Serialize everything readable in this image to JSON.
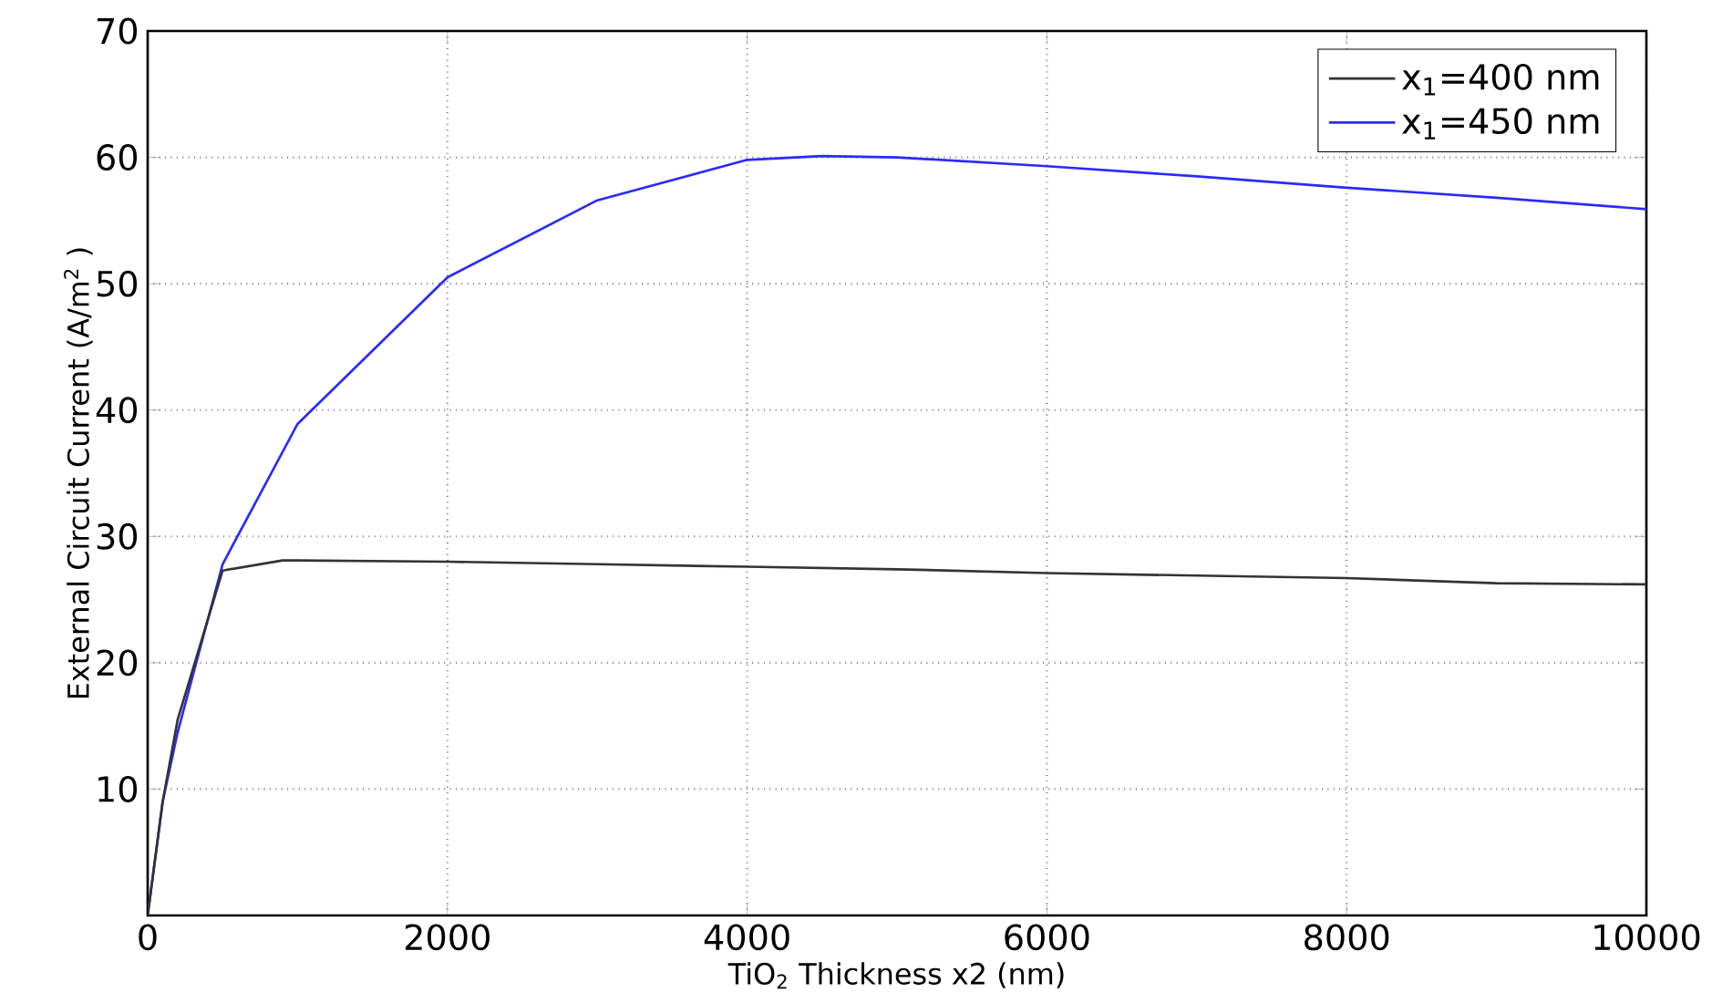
{
  "chart_data": {
    "type": "line",
    "xlabel": "TiO$_{2}$ Thickness x2 (nm)",
    "ylabel": "External Circuit Current (A/m$^{2}$ )",
    "xlim": [
      0,
      10000
    ],
    "ylim": [
      0,
      70
    ],
    "xticks": [
      0,
      2000,
      4000,
      6000,
      8000,
      10000
    ],
    "yticks": [
      10,
      20,
      30,
      40,
      50,
      60,
      70
    ],
    "grid": true,
    "legend": "top right",
    "line_style": "solid",
    "series": [
      {
        "name": "x$_{1}$=400 nm",
        "color": "#333333",
        "x": [
          0,
          100,
          200,
          500,
          900,
          1000,
          2000,
          3000,
          4000,
          5000,
          6000,
          7000,
          8000,
          9000,
          10000
        ],
        "values": [
          0,
          9,
          15.5,
          27.3,
          28.1,
          28.1,
          28,
          27.8,
          27.6,
          27.4,
          27.1,
          26.9,
          26.7,
          26.3,
          26.2
        ]
      },
      {
        "name": "x$_{1}$=450 nm",
        "color": "#2a2aff",
        "x": [
          0,
          100,
          200,
          500,
          1000,
          2000,
          3000,
          4000,
          4500,
          5000,
          6000,
          7000,
          8000,
          9000,
          10000
        ],
        "values": [
          0,
          9,
          14.5,
          27.8,
          38.9,
          50.5,
          56.6,
          59.8,
          60.1,
          60,
          59.3,
          58.5,
          57.6,
          56.8,
          55.9
        ]
      }
    ]
  }
}
